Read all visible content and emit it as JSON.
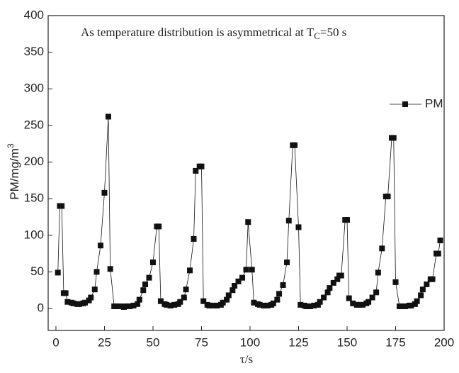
{
  "chart_data": {
    "type": "line",
    "annotation": [
      "As temperature distribution is asymmetrical  at T",
      "C",
      "=50 s"
    ],
    "x_label": "τ/s",
    "y_label": [
      "PM/mg/m",
      "3"
    ],
    "x": [
      1,
      2,
      3,
      4,
      5,
      6,
      8,
      9,
      11,
      12,
      14,
      15,
      17,
      18,
      20,
      21,
      23,
      25,
      27,
      28,
      30,
      31,
      33,
      35,
      36,
      38,
      40,
      42,
      43,
      45,
      46,
      48,
      50,
      52,
      53,
      54,
      56,
      57,
      59,
      61,
      63,
      64,
      66,
      67,
      69,
      71,
      72,
      74,
      75,
      76,
      78,
      79,
      81,
      83,
      85,
      86,
      88,
      89,
      91,
      92,
      94,
      96,
      98,
      99,
      101,
      102,
      104,
      105,
      107,
      109,
      111,
      112,
      114,
      115,
      117,
      119,
      120,
      122,
      123,
      125,
      126,
      128,
      129,
      131,
      133,
      135,
      136,
      138,
      140,
      141,
      143,
      145,
      146,
      147,
      149,
      150,
      151,
      153,
      155,
      156,
      158,
      160,
      161,
      163,
      165,
      166,
      168,
      170,
      171,
      173,
      174,
      175,
      177,
      178,
      180,
      182,
      183,
      185,
      186,
      188,
      189,
      191,
      193,
      194,
      196,
      197,
      198
    ],
    "series": [
      {
        "name": "PM",
        "color": "#111111",
        "values": [
          49,
          140,
          140,
          21,
          21,
          9,
          8,
          7,
          6,
          6,
          7,
          8,
          11,
          15,
          26,
          50,
          86,
          158,
          262,
          54,
          3,
          3,
          3,
          2,
          3,
          3,
          4,
          6,
          12,
          25,
          33,
          42,
          63,
          112,
          112,
          10,
          6,
          5,
          4,
          5,
          6,
          9,
          15,
          26,
          52,
          95,
          188,
          194,
          194,
          10,
          5,
          4,
          4,
          4,
          5,
          8,
          12,
          18,
          25,
          31,
          37,
          42,
          53,
          118,
          53,
          8,
          6,
          5,
          4,
          4,
          5,
          7,
          12,
          20,
          32,
          63,
          120,
          223,
          223,
          111,
          5,
          4,
          3,
          3,
          4,
          5,
          9,
          15,
          22,
          28,
          35,
          40,
          45,
          45,
          121,
          121,
          14,
          7,
          5,
          5,
          5,
          7,
          9,
          15,
          22,
          49,
          82,
          153,
          153,
          233,
          233,
          36,
          3,
          3,
          3,
          4,
          4,
          6,
          10,
          18,
          26,
          33,
          40,
          40,
          75,
          75,
          93
        ]
      }
    ],
    "xlim": [
      -4,
      200
    ],
    "ylim": [
      -30,
      400
    ],
    "xticks": [
      0,
      25,
      50,
      75,
      100,
      125,
      150,
      175,
      200
    ],
    "yticks": [
      0,
      50,
      100,
      150,
      200,
      250,
      300,
      350,
      400
    ]
  }
}
